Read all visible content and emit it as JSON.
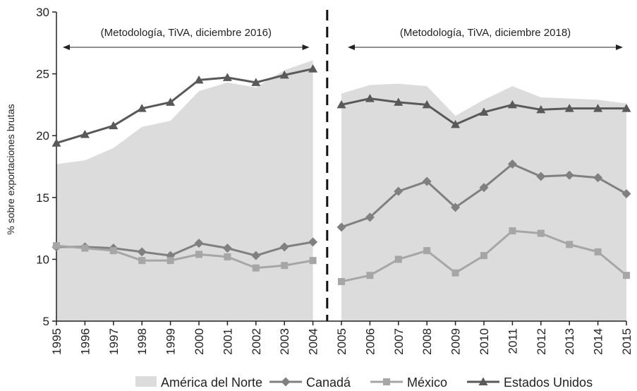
{
  "chart_data": {
    "type": "line",
    "title": "",
    "xlabel": "",
    "ylabel": "% sobre exportaciones brutas",
    "ylim": [
      5,
      30
    ],
    "yticks": [
      5,
      10,
      15,
      20,
      25,
      30
    ],
    "categories": [
      "1995",
      "1996",
      "1997",
      "1998",
      "1999",
      "2000",
      "2001",
      "2002",
      "2003",
      "2004",
      "2005",
      "2006",
      "2007",
      "2008",
      "2009",
      "2010",
      "2011",
      "2012",
      "2013",
      "2014",
      "2015"
    ],
    "break_after": "2004",
    "annotations": [
      {
        "text": "(Metodología, TiVA, diciembre 2016)",
        "from": "1995",
        "to": "2004"
      },
      {
        "text": "(Metodología, TiVA, diciembre 2018)",
        "from": "2005",
        "to": "2015"
      }
    ],
    "series": [
      {
        "name": "América del Norte",
        "kind": "area",
        "color": "#dcdcdc",
        "values": [
          17.7,
          18.0,
          19.0,
          20.7,
          21.2,
          23.6,
          24.3,
          23.9,
          25.3,
          26.1,
          23.4,
          24.1,
          24.2,
          24.0,
          21.6,
          22.9,
          24.0,
          23.1,
          23.0,
          22.9,
          22.6
        ]
      },
      {
        "name": "Canadá",
        "kind": "line",
        "marker": "diamond",
        "color": "#808080",
        "values": [
          11.0,
          11.0,
          10.9,
          10.6,
          10.3,
          11.3,
          10.9,
          10.3,
          11.0,
          11.4,
          12.6,
          13.4,
          15.5,
          16.3,
          14.2,
          15.8,
          17.7,
          16.7,
          16.8,
          16.6,
          15.3
        ]
      },
      {
        "name": "México",
        "kind": "line",
        "marker": "square",
        "color": "#a6a6a6",
        "values": [
          11.1,
          10.9,
          10.7,
          9.9,
          9.9,
          10.4,
          10.2,
          9.3,
          9.5,
          9.9,
          8.2,
          8.7,
          10.0,
          10.7,
          8.9,
          10.3,
          12.3,
          12.1,
          11.2,
          10.6,
          8.7
        ]
      },
      {
        "name": "Estados Unidos",
        "kind": "line",
        "marker": "triangle",
        "color": "#595959",
        "values": [
          19.4,
          20.1,
          20.8,
          22.2,
          22.7,
          24.5,
          24.7,
          24.3,
          24.9,
          25.4,
          22.5,
          23.0,
          22.7,
          22.5,
          20.9,
          21.9,
          22.5,
          22.1,
          22.2,
          22.2,
          22.2
        ]
      }
    ],
    "legend_position": "bottom"
  }
}
